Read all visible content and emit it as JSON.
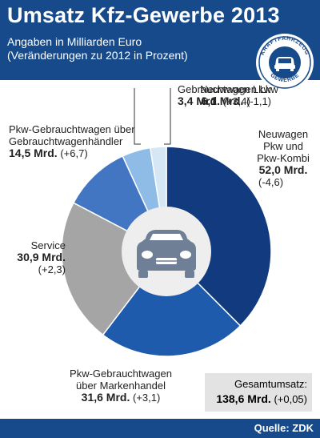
{
  "header": {
    "title": "Umsatz Kfz-Gewerbe 2013",
    "subtitle_line1": "Angaben in Milliarden Euro",
    "subtitle_line2": "(Veränderungen zu 2012 in Prozent)"
  },
  "badge": {
    "text_top": "KRAFTFAHRZEUG",
    "text_bottom": "GEWERBE"
  },
  "total": {
    "label": "Gesamtumsatz:",
    "value": "138,6 Mrd.",
    "change": "(+0,05)"
  },
  "footer": {
    "source": "Quelle: ZDK"
  },
  "colors": {
    "header_bg": "#174a8b",
    "ring_hole": "#eeeeee"
  },
  "chart_data": {
    "type": "pie",
    "title": "Umsatz Kfz-Gewerbe 2013",
    "unit": "Mrd. Euro",
    "total": 138.6,
    "slices": [
      {
        "label_lines": [
          "Neuwagen",
          "Pkw und",
          "Pkw-Kombi"
        ],
        "value": 52.0,
        "value_text": "52,0 Mrd.",
        "change": -4.6,
        "change_text": "(-4,6)",
        "color": "#123b7f"
      },
      {
        "label_lines": [
          "Pkw-Gebrauchtwagen",
          "über Markenhandel"
        ],
        "value": 31.6,
        "value_text": "31,6 Mrd.",
        "change": 3.1,
        "change_text": "(+3,1)",
        "color": "#1f5bac"
      },
      {
        "label_lines": [
          "Service"
        ],
        "value": 30.9,
        "value_text": "30,9 Mrd.",
        "change": 2.3,
        "change_text": "(+2,3)",
        "color": "#a5a5a5"
      },
      {
        "label_lines": [
          "Pkw-Gebrauchtwagen über",
          "Gebrauchtwagenhändler"
        ],
        "value": 14.5,
        "value_text": "14,5 Mrd.",
        "change": 6.7,
        "change_text": "(+6,7)",
        "color": "#4275c2"
      },
      {
        "label_lines": [
          "Neuwagen Lkw"
        ],
        "value": 6.1,
        "value_text": "6,1 Mrd.",
        "change": -1.1,
        "change_text": "(-1,1)",
        "color": "#8ebce6"
      },
      {
        "label_lines": [
          "Gebrauchtwagen Lkw"
        ],
        "value": 3.4,
        "value_text": "3,4 Mrd.",
        "change": 3.4,
        "change_text": "(+3,4)",
        "color": "#d5e6f5"
      }
    ]
  }
}
